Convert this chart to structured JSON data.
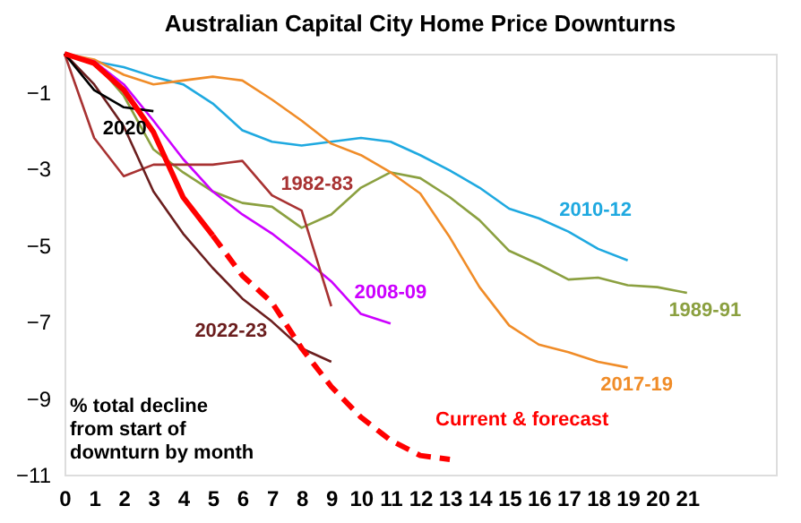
{
  "chart_data": {
    "type": "line",
    "title": "Australian Capital City Home Price Downturns",
    "annotations": [
      "% total decline\nfrom start of\ndownturn by month"
    ],
    "xlim": [
      0,
      24
    ],
    "xticks": [
      0,
      1,
      2,
      3,
      4,
      5,
      6,
      7,
      8,
      9,
      10,
      11,
      12,
      13,
      14,
      15,
      16,
      17,
      18,
      19,
      20,
      21
    ],
    "ylim": [
      -11,
      0
    ],
    "yticks": [
      -1,
      -3,
      -5,
      -7,
      -9,
      -11
    ],
    "series": [
      {
        "name": "2010-12",
        "color": "#1fa9e0",
        "x": [
          0,
          1,
          2,
          3,
          4,
          5,
          6,
          7,
          8,
          9,
          10,
          11,
          12,
          13,
          14,
          15,
          16,
          17,
          18,
          19
        ],
        "values": [
          0,
          -0.2,
          -0.35,
          -0.6,
          -0.8,
          -1.3,
          -2.0,
          -2.3,
          -2.4,
          -2.3,
          -2.2,
          -2.3,
          -2.65,
          -3.05,
          -3.5,
          -4.05,
          -4.3,
          -4.65,
          -5.1,
          -5.4
        ]
      },
      {
        "name": "1989-91",
        "color": "#8ba040",
        "x": [
          0,
          1,
          2,
          3,
          4,
          5,
          6,
          7,
          8,
          9,
          10,
          11,
          12,
          13,
          14,
          15,
          16,
          17,
          18,
          19,
          20,
          21
        ],
        "values": [
          0,
          -0.2,
          -1.1,
          -2.5,
          -3.1,
          -3.6,
          -3.9,
          -4.0,
          -4.55,
          -4.2,
          -3.5,
          -3.1,
          -3.25,
          -3.75,
          -4.35,
          -5.15,
          -5.5,
          -5.9,
          -5.85,
          -6.05,
          -6.1,
          -6.25
        ]
      },
      {
        "name": "2017-19",
        "color": "#f08c28",
        "x": [
          0,
          1,
          2,
          3,
          4,
          5,
          6,
          7,
          8,
          9,
          10,
          11,
          12,
          13,
          14,
          15,
          16,
          17,
          18,
          19
        ],
        "values": [
          0,
          -0.15,
          -0.55,
          -0.8,
          -0.7,
          -0.6,
          -0.7,
          -1.2,
          -1.75,
          -2.35,
          -2.65,
          -3.1,
          -3.65,
          -4.8,
          -6.1,
          -7.1,
          -7.6,
          -7.8,
          -8.05,
          -8.2
        ]
      },
      {
        "name": "2008-09",
        "color": "#cc00ff",
        "x": [
          0,
          1,
          2,
          3,
          4,
          5,
          6,
          7,
          8,
          9,
          10,
          11
        ],
        "values": [
          0,
          -0.2,
          -0.8,
          -1.75,
          -2.75,
          -3.6,
          -4.2,
          -4.7,
          -5.3,
          -5.95,
          -6.8,
          -7.05
        ]
      },
      {
        "name": "1982-83",
        "color": "#a83232",
        "x": [
          0,
          1,
          2,
          3,
          4,
          5,
          6,
          7,
          8,
          9
        ],
        "values": [
          0,
          -2.2,
          -3.2,
          -2.9,
          -2.9,
          -2.9,
          -2.8,
          -3.7,
          -4.1,
          -6.6
        ]
      },
      {
        "name": "2022-23",
        "color": "#6b1e1e",
        "x": [
          0,
          1,
          2,
          3,
          4,
          5,
          6,
          7,
          8,
          9
        ],
        "values": [
          0,
          -0.8,
          -1.9,
          -3.6,
          -4.7,
          -5.6,
          -6.4,
          -7.0,
          -7.7,
          -8.05
        ]
      },
      {
        "name": "2020",
        "color": "#000000",
        "x": [
          0,
          1,
          2,
          3
        ],
        "values": [
          0,
          -0.95,
          -1.4,
          -1.5
        ]
      },
      {
        "color": "#ff0000",
        "line_style": "solid",
        "x": [
          0,
          1,
          2,
          3,
          4,
          5
        ],
        "values": [
          0,
          -0.25,
          -0.95,
          -2.05,
          -3.75,
          -4.75
        ]
      },
      {
        "name": "Current & forecast",
        "color": "#ff0000",
        "line_style": "dashed",
        "x": [
          5,
          6,
          7,
          8,
          9,
          10,
          11,
          12,
          13
        ],
        "values": [
          -4.75,
          -5.8,
          -6.5,
          -7.7,
          -8.7,
          -9.5,
          -10.1,
          -10.5,
          -10.6
        ]
      }
    ]
  }
}
